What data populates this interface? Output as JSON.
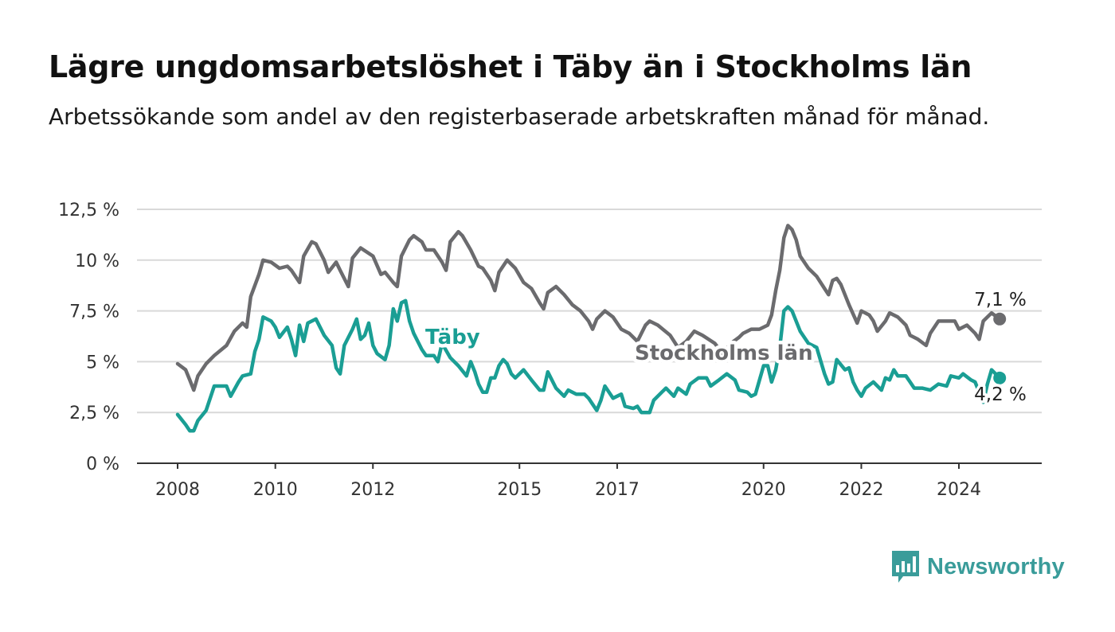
{
  "header": {
    "title": "Lägre ungdomsarbetslöshet i Täby än i Stockholms län",
    "subtitle": "Arbetssökande som andel av den registerbaserade arbetskraften månad för månad."
  },
  "brand": {
    "name": "Newsworthy",
    "color": "#3a9c9a",
    "icon": "newsworthy-bar-chart-icon"
  },
  "chart_data": {
    "type": "line",
    "x_type": "date",
    "xlim": [
      "2007-06-01",
      "2025-12-01"
    ],
    "ylim": [
      0,
      12.5
    ],
    "y_ticks": [
      {
        "value": 0,
        "label": "0 %"
      },
      {
        "value": 2.5,
        "label": "2,5 %"
      },
      {
        "value": 5,
        "label": "5 %"
      },
      {
        "value": 7.5,
        "label": "7,5 %"
      },
      {
        "value": 10,
        "label": "10 %"
      },
      {
        "value": 12.5,
        "label": "12,5 %"
      }
    ],
    "x_ticks": [
      {
        "value": "2008-01-01",
        "label": "2008"
      },
      {
        "value": "2010-01-01",
        "label": "2010"
      },
      {
        "value": "2012-01-01",
        "label": "2012"
      },
      {
        "value": "2015-01-01",
        "label": "2015"
      },
      {
        "value": "2017-01-01",
        "label": "2017"
      },
      {
        "value": "2020-01-01",
        "label": "2020"
      },
      {
        "value": "2022-01-01",
        "label": "2022"
      },
      {
        "value": "2024-01-01",
        "label": "2024"
      }
    ],
    "grid": true,
    "series": [
      {
        "name": "Stockholms län",
        "color": "#6b6b6e",
        "end_label": "7,1 %",
        "data": [
          [
            "2008-01",
            4.9
          ],
          [
            "2008-03",
            4.6
          ],
          [
            "2008-04",
            4.1
          ],
          [
            "2008-05",
            3.6
          ],
          [
            "2008-06",
            4.3
          ],
          [
            "2008-08",
            4.9
          ],
          [
            "2008-10",
            5.3
          ],
          [
            "2009-01",
            5.8
          ],
          [
            "2009-03",
            6.5
          ],
          [
            "2009-05",
            6.9
          ],
          [
            "2009-06",
            6.7
          ],
          [
            "2009-07",
            8.2
          ],
          [
            "2009-09",
            9.3
          ],
          [
            "2009-10",
            10.0
          ],
          [
            "2009-12",
            9.9
          ],
          [
            "2010-02",
            9.6
          ],
          [
            "2010-04",
            9.7
          ],
          [
            "2010-05",
            9.5
          ],
          [
            "2010-07",
            8.9
          ],
          [
            "2010-08",
            10.2
          ],
          [
            "2010-10",
            10.9
          ],
          [
            "2010-11",
            10.8
          ],
          [
            "2011-01",
            10.0
          ],
          [
            "2011-02",
            9.4
          ],
          [
            "2011-04",
            9.9
          ],
          [
            "2011-05",
            9.5
          ],
          [
            "2011-07",
            8.7
          ],
          [
            "2011-08",
            10.1
          ],
          [
            "2011-10",
            10.6
          ],
          [
            "2012-01",
            10.2
          ],
          [
            "2012-03",
            9.3
          ],
          [
            "2012-04",
            9.4
          ],
          [
            "2012-06",
            8.9
          ],
          [
            "2012-07",
            8.7
          ],
          [
            "2012-08",
            10.2
          ],
          [
            "2012-10",
            11.0
          ],
          [
            "2012-11",
            11.2
          ],
          [
            "2013-01",
            10.9
          ],
          [
            "2013-02",
            10.5
          ],
          [
            "2013-04",
            10.5
          ],
          [
            "2013-06",
            9.9
          ],
          [
            "2013-07",
            9.5
          ],
          [
            "2013-08",
            10.9
          ],
          [
            "2013-10",
            11.4
          ],
          [
            "2013-11",
            11.2
          ],
          [
            "2014-01",
            10.5
          ],
          [
            "2014-03",
            9.7
          ],
          [
            "2014-04",
            9.6
          ],
          [
            "2014-06",
            9.0
          ],
          [
            "2014-07",
            8.5
          ],
          [
            "2014-08",
            9.4
          ],
          [
            "2014-10",
            10.0
          ],
          [
            "2014-12",
            9.6
          ],
          [
            "2015-02",
            8.9
          ],
          [
            "2015-04",
            8.6
          ],
          [
            "2015-06",
            7.9
          ],
          [
            "2015-07",
            7.6
          ],
          [
            "2015-08",
            8.4
          ],
          [
            "2015-10",
            8.7
          ],
          [
            "2015-12",
            8.3
          ],
          [
            "2016-02",
            7.8
          ],
          [
            "2016-04",
            7.5
          ],
          [
            "2016-06",
            7.0
          ],
          [
            "2016-07",
            6.6
          ],
          [
            "2016-08",
            7.1
          ],
          [
            "2016-10",
            7.5
          ],
          [
            "2016-12",
            7.2
          ],
          [
            "2017-02",
            6.6
          ],
          [
            "2017-04",
            6.4
          ],
          [
            "2017-06",
            6.0
          ],
          [
            "2017-08",
            6.8
          ],
          [
            "2017-09",
            7.0
          ],
          [
            "2017-11",
            6.8
          ],
          [
            "2018-02",
            6.3
          ],
          [
            "2018-04",
            5.7
          ],
          [
            "2018-06",
            6.0
          ],
          [
            "2018-08",
            6.5
          ],
          [
            "2018-10",
            6.3
          ],
          [
            "2019-01",
            5.9
          ],
          [
            "2019-03",
            5.4
          ],
          [
            "2019-05",
            5.9
          ],
          [
            "2019-07",
            6.2
          ],
          [
            "2019-08",
            6.4
          ],
          [
            "2019-10",
            6.6
          ],
          [
            "2019-12",
            6.6
          ],
          [
            "2020-02",
            6.8
          ],
          [
            "2020-03",
            7.3
          ],
          [
            "2020-04",
            8.5
          ],
          [
            "2020-05",
            9.5
          ],
          [
            "2020-06",
            11.1
          ],
          [
            "2020-07",
            11.7
          ],
          [
            "2020-08",
            11.5
          ],
          [
            "2020-09",
            11.0
          ],
          [
            "2020-10",
            10.2
          ],
          [
            "2020-12",
            9.6
          ],
          [
            "2021-02",
            9.2
          ],
          [
            "2021-04",
            8.6
          ],
          [
            "2021-05",
            8.3
          ],
          [
            "2021-06",
            9.0
          ],
          [
            "2021-07",
            9.1
          ],
          [
            "2021-08",
            8.8
          ],
          [
            "2021-10",
            7.8
          ],
          [
            "2021-12",
            6.9
          ],
          [
            "2022-01",
            7.5
          ],
          [
            "2022-03",
            7.3
          ],
          [
            "2022-04",
            7.0
          ],
          [
            "2022-05",
            6.5
          ],
          [
            "2022-07",
            7.0
          ],
          [
            "2022-08",
            7.4
          ],
          [
            "2022-10",
            7.2
          ],
          [
            "2022-12",
            6.8
          ],
          [
            "2023-01",
            6.3
          ],
          [
            "2023-03",
            6.1
          ],
          [
            "2023-05",
            5.8
          ],
          [
            "2023-06",
            6.4
          ],
          [
            "2023-08",
            7.0
          ],
          [
            "2023-10",
            7.0
          ],
          [
            "2023-12",
            7.0
          ],
          [
            "2024-01",
            6.6
          ],
          [
            "2024-03",
            6.8
          ],
          [
            "2024-05",
            6.4
          ],
          [
            "2024-06",
            6.1
          ],
          [
            "2024-07",
            7.0
          ],
          [
            "2024-09",
            7.4
          ],
          [
            "2024-11",
            7.1
          ]
        ]
      },
      {
        "name": "Täby",
        "color": "#1a9e94",
        "end_label": "4,2 %",
        "data": [
          [
            "2008-01",
            2.4
          ],
          [
            "2008-03",
            1.9
          ],
          [
            "2008-04",
            1.6
          ],
          [
            "2008-05",
            1.6
          ],
          [
            "2008-06",
            2.1
          ],
          [
            "2008-08",
            2.6
          ],
          [
            "2008-10",
            3.8
          ],
          [
            "2009-01",
            3.8
          ],
          [
            "2009-02",
            3.3
          ],
          [
            "2009-04",
            4.0
          ],
          [
            "2009-05",
            4.3
          ],
          [
            "2009-07",
            4.4
          ],
          [
            "2009-08",
            5.5
          ],
          [
            "2009-09",
            6.1
          ],
          [
            "2009-10",
            7.2
          ],
          [
            "2009-12",
            7.0
          ],
          [
            "2010-01",
            6.7
          ],
          [
            "2010-02",
            6.2
          ],
          [
            "2010-04",
            6.7
          ],
          [
            "2010-05",
            6.1
          ],
          [
            "2010-06",
            5.3
          ],
          [
            "2010-07",
            6.8
          ],
          [
            "2010-08",
            6.0
          ],
          [
            "2010-09",
            6.9
          ],
          [
            "2010-11",
            7.1
          ],
          [
            "2011-01",
            6.3
          ],
          [
            "2011-03",
            5.8
          ],
          [
            "2011-04",
            4.7
          ],
          [
            "2011-05",
            4.4
          ],
          [
            "2011-06",
            5.8
          ],
          [
            "2011-08",
            6.6
          ],
          [
            "2011-09",
            7.1
          ],
          [
            "2011-10",
            6.1
          ],
          [
            "2011-11",
            6.3
          ],
          [
            "2011-12",
            6.9
          ],
          [
            "2012-01",
            5.8
          ],
          [
            "2012-02",
            5.4
          ],
          [
            "2012-04",
            5.1
          ],
          [
            "2012-05",
            5.8
          ],
          [
            "2012-06",
            7.6
          ],
          [
            "2012-07",
            7.0
          ],
          [
            "2012-08",
            7.9
          ],
          [
            "2012-09",
            8.0
          ],
          [
            "2012-10",
            7.0
          ],
          [
            "2012-11",
            6.4
          ],
          [
            "2013-01",
            5.6
          ],
          [
            "2013-02",
            5.3
          ],
          [
            "2013-04",
            5.3
          ],
          [
            "2013-05",
            5.0
          ],
          [
            "2013-06",
            5.9
          ],
          [
            "2013-08",
            5.2
          ],
          [
            "2013-10",
            4.8
          ],
          [
            "2013-12",
            4.3
          ],
          [
            "2014-01",
            5.0
          ],
          [
            "2014-02",
            4.5
          ],
          [
            "2014-03",
            3.9
          ],
          [
            "2014-04",
            3.5
          ],
          [
            "2014-05",
            3.5
          ],
          [
            "2014-06",
            4.2
          ],
          [
            "2014-07",
            4.2
          ],
          [
            "2014-08",
            4.8
          ],
          [
            "2014-09",
            5.1
          ],
          [
            "2014-10",
            4.9
          ],
          [
            "2014-11",
            4.4
          ],
          [
            "2014-12",
            4.2
          ],
          [
            "2015-02",
            4.6
          ],
          [
            "2015-04",
            4.1
          ],
          [
            "2015-06",
            3.6
          ],
          [
            "2015-07",
            3.6
          ],
          [
            "2015-08",
            4.5
          ],
          [
            "2015-10",
            3.7
          ],
          [
            "2015-12",
            3.3
          ],
          [
            "2016-01",
            3.6
          ],
          [
            "2016-03",
            3.4
          ],
          [
            "2016-05",
            3.4
          ],
          [
            "2016-06",
            3.2
          ],
          [
            "2016-08",
            2.6
          ],
          [
            "2016-09",
            3.1
          ],
          [
            "2016-10",
            3.8
          ],
          [
            "2016-12",
            3.2
          ],
          [
            "2017-02",
            3.4
          ],
          [
            "2017-03",
            2.8
          ],
          [
            "2017-05",
            2.7
          ],
          [
            "2017-06",
            2.8
          ],
          [
            "2017-07",
            2.5
          ],
          [
            "2017-09",
            2.5
          ],
          [
            "2017-10",
            3.1
          ],
          [
            "2017-12",
            3.5
          ],
          [
            "2018-01",
            3.7
          ],
          [
            "2018-03",
            3.3
          ],
          [
            "2018-04",
            3.7
          ],
          [
            "2018-06",
            3.4
          ],
          [
            "2018-07",
            3.9
          ],
          [
            "2018-09",
            4.2
          ],
          [
            "2018-11",
            4.2
          ],
          [
            "2018-12",
            3.8
          ],
          [
            "2019-02",
            4.1
          ],
          [
            "2019-04",
            4.4
          ],
          [
            "2019-06",
            4.1
          ],
          [
            "2019-07",
            3.6
          ],
          [
            "2019-09",
            3.5
          ],
          [
            "2019-10",
            3.3
          ],
          [
            "2019-11",
            3.4
          ],
          [
            "2020-01",
            4.8
          ],
          [
            "2020-02",
            4.8
          ],
          [
            "2020-03",
            4.0
          ],
          [
            "2020-04",
            4.6
          ],
          [
            "2020-05",
            5.7
          ],
          [
            "2020-06",
            7.5
          ],
          [
            "2020-07",
            7.7
          ],
          [
            "2020-08",
            7.5
          ],
          [
            "2020-10",
            6.5
          ],
          [
            "2020-12",
            5.9
          ],
          [
            "2021-02",
            5.7
          ],
          [
            "2021-04",
            4.4
          ],
          [
            "2021-05",
            3.9
          ],
          [
            "2021-06",
            4.0
          ],
          [
            "2021-07",
            5.1
          ],
          [
            "2021-09",
            4.6
          ],
          [
            "2021-10",
            4.7
          ],
          [
            "2021-11",
            4.0
          ],
          [
            "2021-12",
            3.6
          ],
          [
            "2022-01",
            3.3
          ],
          [
            "2022-02",
            3.7
          ],
          [
            "2022-04",
            4.0
          ],
          [
            "2022-06",
            3.6
          ],
          [
            "2022-07",
            4.2
          ],
          [
            "2022-08",
            4.1
          ],
          [
            "2022-09",
            4.6
          ],
          [
            "2022-10",
            4.3
          ],
          [
            "2022-12",
            4.3
          ],
          [
            "2023-01",
            4.0
          ],
          [
            "2023-02",
            3.7
          ],
          [
            "2023-04",
            3.7
          ],
          [
            "2023-06",
            3.6
          ],
          [
            "2023-08",
            3.9
          ],
          [
            "2023-10",
            3.8
          ],
          [
            "2023-11",
            4.3
          ],
          [
            "2024-01",
            4.2
          ],
          [
            "2024-02",
            4.4
          ],
          [
            "2024-04",
            4.1
          ],
          [
            "2024-05",
            4.0
          ],
          [
            "2024-06",
            3.5
          ],
          [
            "2024-07",
            3.0
          ],
          [
            "2024-08",
            3.9
          ],
          [
            "2024-09",
            4.6
          ],
          [
            "2024-11",
            4.2
          ]
        ]
      }
    ]
  }
}
